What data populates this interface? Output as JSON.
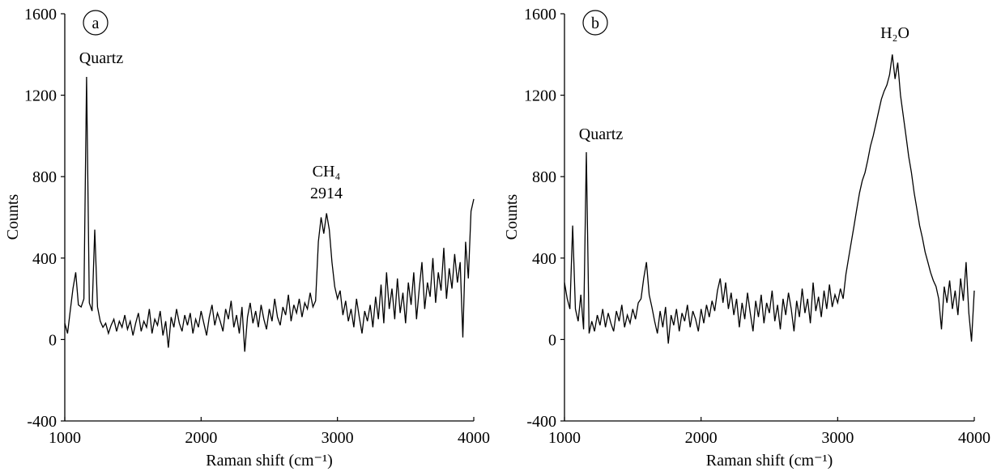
{
  "chart_data": [
    {
      "type": "line",
      "panel_label": "a",
      "xlabel": "Raman shift (cm⁻¹)",
      "ylabel": "Counts",
      "color": "#000000",
      "annotations": [
        "Quartz",
        "CH₄",
        "2914"
      ],
      "xlim": [
        1000,
        4000
      ],
      "xticks": [
        1000,
        2000,
        3000,
        4000
      ],
      "ylim": [
        -400,
        1600
      ],
      "yticks": [
        -400,
        0,
        400,
        800,
        1200,
        1600
      ],
      "x": [
        1000,
        1020,
        1040,
        1060,
        1080,
        1100,
        1120,
        1140,
        1160,
        1180,
        1200,
        1220,
        1240,
        1260,
        1280,
        1300,
        1320,
        1340,
        1360,
        1380,
        1400,
        1420,
        1440,
        1460,
        1480,
        1500,
        1520,
        1540,
        1560,
        1580,
        1600,
        1620,
        1640,
        1660,
        1680,
        1700,
        1720,
        1740,
        1760,
        1780,
        1800,
        1820,
        1840,
        1860,
        1880,
        1900,
        1920,
        1940,
        1960,
        1980,
        2000,
        2020,
        2040,
        2060,
        2080,
        2100,
        2120,
        2140,
        2160,
        2180,
        2200,
        2220,
        2240,
        2260,
        2280,
        2300,
        2320,
        2340,
        2360,
        2380,
        2400,
        2420,
        2440,
        2460,
        2480,
        2500,
        2520,
        2540,
        2560,
        2580,
        2600,
        2620,
        2640,
        2660,
        2680,
        2700,
        2720,
        2740,
        2760,
        2780,
        2800,
        2820,
        2840,
        2860,
        2880,
        2900,
        2920,
        2940,
        2960,
        2980,
        3000,
        3020,
        3040,
        3060,
        3080,
        3100,
        3120,
        3140,
        3160,
        3180,
        3200,
        3220,
        3240,
        3260,
        3280,
        3300,
        3320,
        3340,
        3360,
        3380,
        3400,
        3420,
        3440,
        3460,
        3480,
        3500,
        3520,
        3540,
        3560,
        3580,
        3600,
        3620,
        3640,
        3660,
        3680,
        3700,
        3720,
        3740,
        3760,
        3780,
        3800,
        3820,
        3840,
        3860,
        3880,
        3900,
        3920,
        3940,
        3960,
        3980,
        4000
      ],
      "values": [
        80,
        30,
        140,
        250,
        330,
        170,
        160,
        200,
        1290,
        180,
        140,
        540,
        160,
        90,
        60,
        80,
        30,
        70,
        100,
        40,
        90,
        60,
        120,
        50,
        90,
        20,
        80,
        130,
        40,
        90,
        60,
        150,
        30,
        100,
        70,
        140,
        20,
        90,
        -40,
        110,
        60,
        150,
        80,
        40,
        120,
        70,
        130,
        30,
        100,
        60,
        140,
        80,
        20,
        110,
        170,
        70,
        130,
        90,
        40,
        150,
        100,
        190,
        60,
        120,
        30,
        160,
        -60,
        110,
        180,
        80,
        140,
        60,
        170,
        100,
        50,
        150,
        90,
        200,
        110,
        70,
        160,
        120,
        220,
        90,
        170,
        130,
        200,
        110,
        180,
        150,
        230,
        160,
        190,
        480,
        600,
        520,
        620,
        540,
        380,
        260,
        200,
        240,
        120,
        190,
        90,
        150,
        60,
        200,
        110,
        30,
        140,
        90,
        170,
        60,
        210,
        100,
        270,
        80,
        330,
        150,
        250,
        100,
        300,
        130,
        230,
        80,
        280,
        170,
        330,
        100,
        250,
        380,
        150,
        280,
        210,
        400,
        180,
        330,
        240,
        450,
        200,
        350,
        250,
        420,
        280,
        380,
        10,
        480,
        300,
        630,
        690
      ]
    },
    {
      "type": "line",
      "panel_label": "b",
      "xlabel": "Raman shift (cm⁻¹)",
      "ylabel": "Counts",
      "color": "#000000",
      "annotations": [
        "Quartz",
        "H₂O"
      ],
      "xlim": [
        1000,
        4000
      ],
      "xticks": [
        1000,
        2000,
        3000,
        4000
      ],
      "ylim": [
        -400,
        1600
      ],
      "yticks": [
        -400,
        0,
        400,
        800,
        1200,
        1600
      ],
      "x": [
        1000,
        1020,
        1040,
        1060,
        1080,
        1100,
        1120,
        1140,
        1160,
        1180,
        1200,
        1220,
        1240,
        1260,
        1280,
        1300,
        1320,
        1340,
        1360,
        1380,
        1400,
        1420,
        1440,
        1460,
        1480,
        1500,
        1520,
        1540,
        1560,
        1580,
        1600,
        1620,
        1640,
        1660,
        1680,
        1700,
        1720,
        1740,
        1760,
        1780,
        1800,
        1820,
        1840,
        1860,
        1880,
        1900,
        1920,
        1940,
        1960,
        1980,
        2000,
        2020,
        2040,
        2060,
        2080,
        2100,
        2120,
        2140,
        2160,
        2180,
        2200,
        2220,
        2240,
        2260,
        2280,
        2300,
        2320,
        2340,
        2360,
        2380,
        2400,
        2420,
        2440,
        2460,
        2480,
        2500,
        2520,
        2540,
        2560,
        2580,
        2600,
        2620,
        2640,
        2660,
        2680,
        2700,
        2720,
        2740,
        2760,
        2780,
        2800,
        2820,
        2840,
        2860,
        2880,
        2900,
        2920,
        2940,
        2960,
        2980,
        3000,
        3020,
        3040,
        3060,
        3080,
        3100,
        3120,
        3140,
        3160,
        3180,
        3200,
        3220,
        3240,
        3260,
        3280,
        3300,
        3320,
        3340,
        3360,
        3380,
        3400,
        3420,
        3440,
        3460,
        3480,
        3500,
        3520,
        3540,
        3560,
        3580,
        3600,
        3620,
        3640,
        3660,
        3680,
        3700,
        3720,
        3740,
        3760,
        3780,
        3800,
        3820,
        3840,
        3860,
        3880,
        3900,
        3920,
        3940,
        3960,
        3980,
        4000
      ],
      "values": [
        280,
        200,
        150,
        560,
        150,
        90,
        220,
        50,
        920,
        30,
        90,
        40,
        120,
        70,
        150,
        60,
        130,
        80,
        40,
        140,
        90,
        170,
        60,
        120,
        80,
        150,
        100,
        180,
        200,
        300,
        380,
        220,
        160,
        90,
        30,
        140,
        60,
        160,
        -20,
        120,
        70,
        150,
        40,
        130,
        90,
        170,
        60,
        140,
        100,
        40,
        150,
        80,
        170,
        110,
        190,
        140,
        240,
        300,
        180,
        280,
        150,
        230,
        120,
        200,
        60,
        180,
        100,
        230,
        130,
        40,
        190,
        110,
        220,
        80,
        180,
        130,
        240,
        90,
        170,
        50,
        200,
        120,
        230,
        150,
        40,
        190,
        110,
        250,
        130,
        200,
        80,
        280,
        140,
        210,
        110,
        240,
        150,
        270,
        160,
        220,
        180,
        250,
        200,
        320,
        400,
        480,
        560,
        640,
        720,
        780,
        820,
        880,
        950,
        1000,
        1060,
        1120,
        1180,
        1220,
        1250,
        1300,
        1400,
        1280,
        1360,
        1200,
        1100,
        1000,
        900,
        820,
        720,
        640,
        560,
        500,
        430,
        380,
        330,
        290,
        260,
        200,
        50,
        260,
        180,
        290,
        150,
        240,
        120,
        300,
        190,
        380,
        130,
        -10,
        240
      ]
    }
  ]
}
